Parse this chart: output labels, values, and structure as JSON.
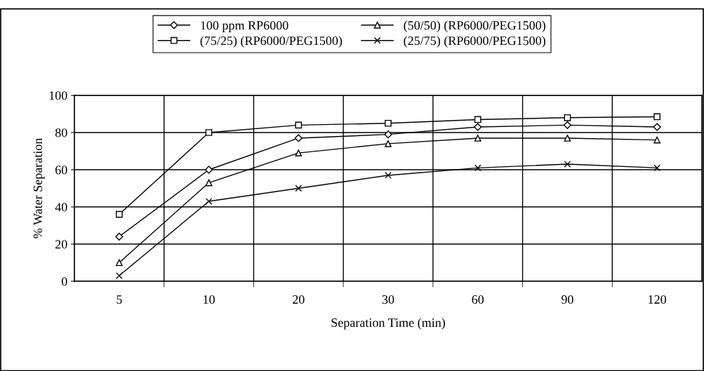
{
  "chart_data": {
    "type": "line",
    "xlabel": "Separation Time (min)",
    "ylabel": "% Water Separation",
    "categories": [
      "5",
      "10",
      "20",
      "30",
      "60",
      "90",
      "120"
    ],
    "series": [
      {
        "name": "100 ppm RP6000",
        "color": "#000000",
        "marker": "diamond",
        "values": [
          24,
          60,
          77,
          79,
          83,
          84,
          83
        ]
      },
      {
        "name": "(75/25) (RP6000/PEG1500)",
        "color": "#000000",
        "marker": "square",
        "values": [
          36,
          80,
          84,
          85,
          87,
          88,
          88.5
        ]
      },
      {
        "name": "(50/50) (RP6000/PEG1500)",
        "color": "#000000",
        "marker": "triangle",
        "values": [
          10,
          53,
          69,
          74,
          77,
          77,
          76
        ]
      },
      {
        "name": "(25/75) (RP6000/PEG1500)",
        "color": "#000000",
        "marker": "cross",
        "values": [
          3,
          43,
          50,
          57,
          61,
          63,
          61
        ]
      }
    ],
    "ylim": [
      0,
      100
    ],
    "yticks": [
      0,
      20,
      40,
      60,
      80,
      100
    ],
    "grid": true,
    "legend": "top",
    "line_style": "solid"
  }
}
